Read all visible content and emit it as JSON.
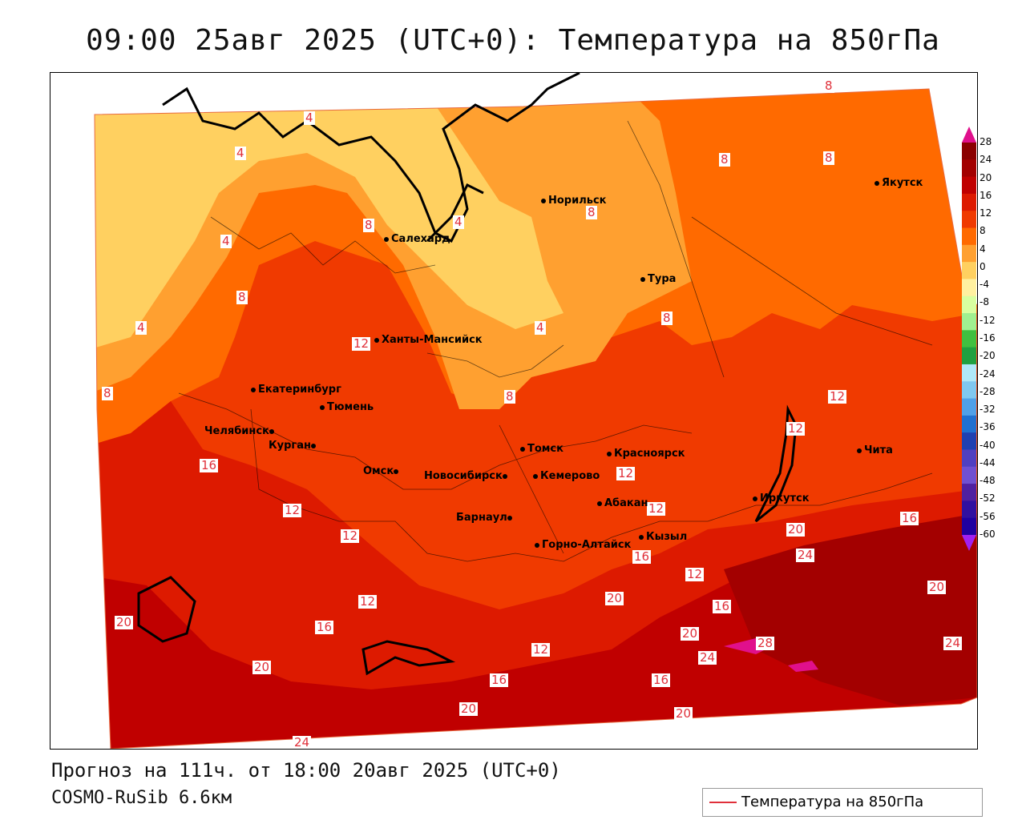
{
  "title": "09:00 25авг 2025 (UTC+0): Температура на 850гПа",
  "forecast_line": "Прогноз на 111ч. от 18:00 20авг 2025 (UTC+0)",
  "model_line": "COSMO-RuSib 6.6км",
  "legend": {
    "label": "Температура на 850гПа",
    "color": "#e0303a"
  },
  "colorbar": {
    "ticks": [
      "28",
      "24",
      "20",
      "16",
      "12",
      "8",
      "4",
      "0",
      "-4",
      "-8",
      "-12",
      "-16",
      "-20",
      "-24",
      "-28",
      "-32",
      "-36",
      "-40",
      "-44",
      "-48",
      "-52",
      "-56",
      "-60"
    ],
    "colors": [
      "#8b0000",
      "#a30000",
      "#c00000",
      "#dd1a00",
      "#f03a00",
      "#ff6a00",
      "#ffa030",
      "#ffd060",
      "#fff0a0",
      "#d8ffa0",
      "#a0f090",
      "#40c040",
      "#20a040",
      "#b0e8f8",
      "#80c8f0",
      "#50a0e8",
      "#2070d0",
      "#2040b0",
      "#5040c0",
      "#7050d0",
      "#5020a0",
      "#3010a0",
      "#2000a0"
    ],
    "top_color": "#e0108c",
    "bottom_color": "#a020f0"
  },
  "cities": [
    {
      "name": "Норильск"
    },
    {
      "name": "Якутск"
    },
    {
      "name": "Салехард"
    },
    {
      "name": "Тура"
    },
    {
      "name": "Ханты-Мансийск"
    },
    {
      "name": "Екатеринбург"
    },
    {
      "name": "Тюмень"
    },
    {
      "name": "Челябинск"
    },
    {
      "name": "Курган"
    },
    {
      "name": "Омск"
    },
    {
      "name": "Новосибирск"
    },
    {
      "name": "Томск"
    },
    {
      "name": "Кемерово"
    },
    {
      "name": "Красноярск"
    },
    {
      "name": "Абакан"
    },
    {
      "name": "Барнаул"
    },
    {
      "name": "Горно-Алтайск"
    },
    {
      "name": "Кызыл"
    },
    {
      "name": "Иркутск"
    },
    {
      "name": "Чита"
    }
  ],
  "contour_labels": [
    "8",
    "4",
    "4",
    "8",
    "4",
    "8",
    "8",
    "4",
    "12",
    "8",
    "8",
    "4",
    "8",
    "8",
    "4",
    "8",
    "12",
    "12",
    "16",
    "16",
    "12",
    "12",
    "20",
    "12",
    "12",
    "12",
    "16",
    "16",
    "20",
    "24",
    "20",
    "16",
    "12",
    "16",
    "12",
    "20",
    "24",
    "20",
    "24",
    "20",
    "28",
    "16",
    "20",
    "24",
    "20"
  ]
}
